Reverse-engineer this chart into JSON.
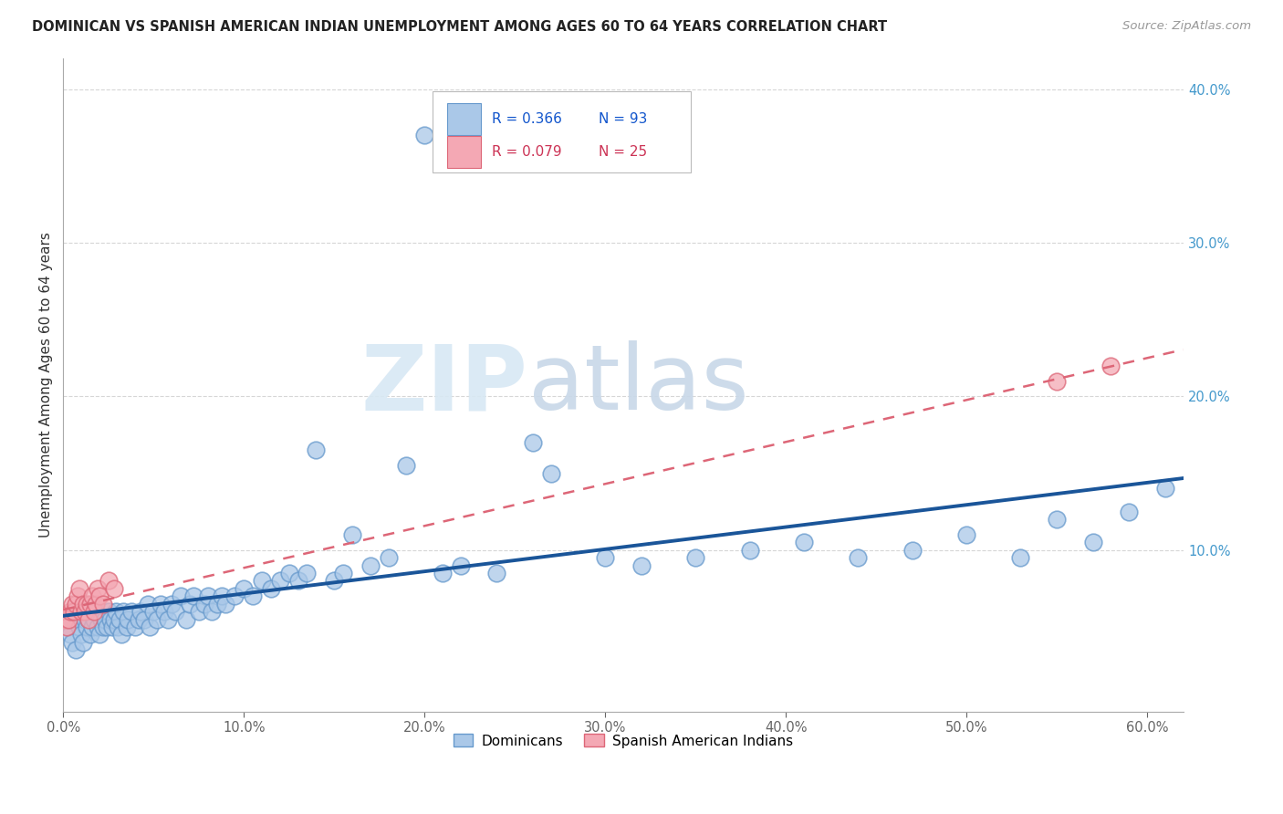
{
  "title": "DOMINICAN VS SPANISH AMERICAN INDIAN UNEMPLOYMENT AMONG AGES 60 TO 64 YEARS CORRELATION CHART",
  "source": "Source: ZipAtlas.com",
  "ylabel": "Unemployment Among Ages 60 to 64 years",
  "xlim": [
    0.0,
    0.62
  ],
  "ylim": [
    -0.005,
    0.42
  ],
  "xticks": [
    0.0,
    0.1,
    0.2,
    0.3,
    0.4,
    0.5,
    0.6
  ],
  "xticklabels": [
    "0.0%",
    "10.0%",
    "20.0%",
    "30.0%",
    "40.0%",
    "50.0%",
    "60.0%"
  ],
  "yticks_right": [
    0.1,
    0.2,
    0.3,
    0.4
  ],
  "yticklabels_right": [
    "10.0%",
    "20.0%",
    "30.0%",
    "40.0%"
  ],
  "dominican_color": "#aac8e8",
  "dominican_edge": "#6699cc",
  "spanish_color": "#f4a8b4",
  "spanish_edge": "#dd6677",
  "dominican_line_color": "#1a5599",
  "spanish_line_color": "#dd6677",
  "watermark_zip": "ZIP",
  "watermark_atlas": "atlas",
  "legend_r1": "R = 0.366",
  "legend_n1": "N = 93",
  "legend_r2": "R = 0.079",
  "legend_n2": "N = 25",
  "background_color": "#ffffff",
  "grid_color": "#cccccc",
  "dom_x": [
    0.003,
    0.004,
    0.005,
    0.006,
    0.007,
    0.008,
    0.009,
    0.01,
    0.011,
    0.012,
    0.013,
    0.014,
    0.015,
    0.016,
    0.017,
    0.018,
    0.019,
    0.02,
    0.021,
    0.022,
    0.023,
    0.024,
    0.025,
    0.026,
    0.027,
    0.028,
    0.029,
    0.03,
    0.031,
    0.032,
    0.033,
    0.035,
    0.036,
    0.038,
    0.04,
    0.042,
    0.043,
    0.045,
    0.047,
    0.048,
    0.05,
    0.052,
    0.054,
    0.056,
    0.058,
    0.06,
    0.062,
    0.065,
    0.068,
    0.07,
    0.072,
    0.075,
    0.078,
    0.08,
    0.082,
    0.085,
    0.088,
    0.09,
    0.095,
    0.1,
    0.105,
    0.11,
    0.115,
    0.12,
    0.125,
    0.13,
    0.135,
    0.14,
    0.15,
    0.155,
    0.16,
    0.17,
    0.18,
    0.19,
    0.2,
    0.21,
    0.22,
    0.24,
    0.26,
    0.27,
    0.3,
    0.32,
    0.35,
    0.38,
    0.41,
    0.44,
    0.47,
    0.5,
    0.53,
    0.55,
    0.57,
    0.59,
    0.61
  ],
  "dom_y": [
    0.05,
    0.045,
    0.04,
    0.055,
    0.035,
    0.06,
    0.05,
    0.045,
    0.04,
    0.055,
    0.05,
    0.055,
    0.045,
    0.05,
    0.055,
    0.06,
    0.05,
    0.045,
    0.055,
    0.05,
    0.055,
    0.05,
    0.06,
    0.055,
    0.05,
    0.055,
    0.06,
    0.05,
    0.055,
    0.045,
    0.06,
    0.05,
    0.055,
    0.06,
    0.05,
    0.055,
    0.06,
    0.055,
    0.065,
    0.05,
    0.06,
    0.055,
    0.065,
    0.06,
    0.055,
    0.065,
    0.06,
    0.07,
    0.055,
    0.065,
    0.07,
    0.06,
    0.065,
    0.07,
    0.06,
    0.065,
    0.07,
    0.065,
    0.07,
    0.075,
    0.07,
    0.08,
    0.075,
    0.08,
    0.085,
    0.08,
    0.085,
    0.165,
    0.08,
    0.085,
    0.11,
    0.09,
    0.095,
    0.155,
    0.37,
    0.085,
    0.09,
    0.085,
    0.17,
    0.15,
    0.095,
    0.09,
    0.095,
    0.1,
    0.105,
    0.095,
    0.1,
    0.11,
    0.095,
    0.12,
    0.105,
    0.125,
    0.14
  ],
  "spa_x": [
    0.001,
    0.002,
    0.003,
    0.004,
    0.005,
    0.006,
    0.007,
    0.008,
    0.009,
    0.01,
    0.011,
    0.012,
    0.013,
    0.014,
    0.015,
    0.016,
    0.017,
    0.018,
    0.019,
    0.02,
    0.022,
    0.025,
    0.028,
    0.55,
    0.58
  ],
  "spa_y": [
    0.055,
    0.05,
    0.055,
    0.06,
    0.065,
    0.06,
    0.065,
    0.07,
    0.075,
    0.06,
    0.065,
    0.06,
    0.065,
    0.055,
    0.065,
    0.07,
    0.06,
    0.065,
    0.075,
    0.07,
    0.065,
    0.08,
    0.075,
    0.21,
    0.22
  ]
}
